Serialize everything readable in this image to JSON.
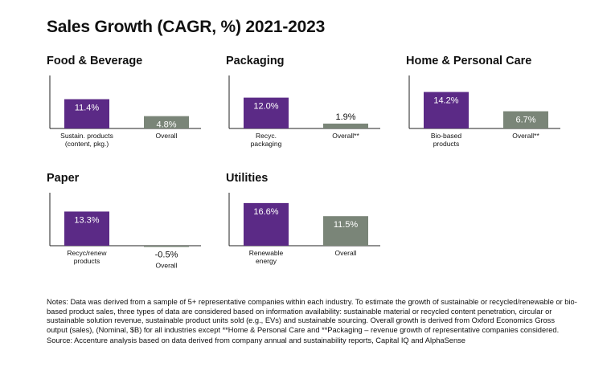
{
  "colors": {
    "sustainable": "#5b2a86",
    "overall": "#7a8578",
    "text": "#111111",
    "axis": "#222222"
  },
  "chart_data": {
    "type": "bar",
    "title": "Sales Growth (CAGR, %) 2021-2023",
    "unit": "%",
    "panels": [
      {
        "title": "Food & Beverage",
        "categories": [
          "Sustain. products (content, pkg.)",
          "Overall"
        ],
        "category_lines": [
          [
            "Sustain. products",
            "(content, pkg.)"
          ],
          [
            "Overall"
          ]
        ],
        "values": [
          11.4,
          4.8
        ],
        "value_labels": [
          "11.4%",
          "4.8%"
        ],
        "series": [
          "sustainable",
          "overall"
        ]
      },
      {
        "title": "Packaging",
        "categories": [
          "Recyc. packaging",
          "Overall**"
        ],
        "category_lines": [
          [
            "Recyc.",
            "packaging"
          ],
          [
            "Overall**"
          ]
        ],
        "values": [
          12.0,
          1.9
        ],
        "value_labels": [
          "12.0%",
          "1.9%"
        ],
        "series": [
          "sustainable",
          "overall"
        ]
      },
      {
        "title": "Home & Personal Care",
        "categories": [
          "Bio-based products",
          "Overall**"
        ],
        "category_lines": [
          [
            "Bio-based",
            "products"
          ],
          [
            "Overall**"
          ]
        ],
        "values": [
          14.2,
          6.7
        ],
        "value_labels": [
          "14.2%",
          "6.7%"
        ],
        "series": [
          "sustainable",
          "overall"
        ]
      },
      {
        "title": "Paper",
        "categories": [
          "Recyc/renew products",
          "Overall"
        ],
        "category_lines": [
          [
            "Recyc/renew",
            "products"
          ],
          [
            "Overall"
          ]
        ],
        "values": [
          13.3,
          -0.5
        ],
        "value_labels": [
          "13.3%",
          "-0.5%"
        ],
        "series": [
          "sustainable",
          "overall"
        ]
      },
      {
        "title": "Utilities",
        "categories": [
          "Renewable energy",
          "Overall"
        ],
        "category_lines": [
          [
            "Renewable",
            "energy"
          ],
          [
            "Overall"
          ]
        ],
        "values": [
          16.6,
          11.5
        ],
        "value_labels": [
          "16.6%",
          "11.5%"
        ],
        "series": [
          "sustainable",
          "overall"
        ]
      }
    ]
  },
  "notes": "Notes: Data was derived from a sample of 5+ representative companies within each industry. To estimate the growth of sustainable or recycled/renewable or bio-based product sales, three types of data are considered based on information availability: sustainable material or recycled content penetration, circular or sustainable solution revenue, sustainable product units sold (e.g., EVs) and sustainable sourcing. Overall growth is derived from Oxford Economics Gross output (sales), (Nominal, $B) for all industries except **Home & Personal Care and **Packaging – revenue growth of representative companies considered.",
  "source": "Source: Accenture analysis based on data derived from company annual and sustainability reports, Capital IQ and AlphaSense"
}
